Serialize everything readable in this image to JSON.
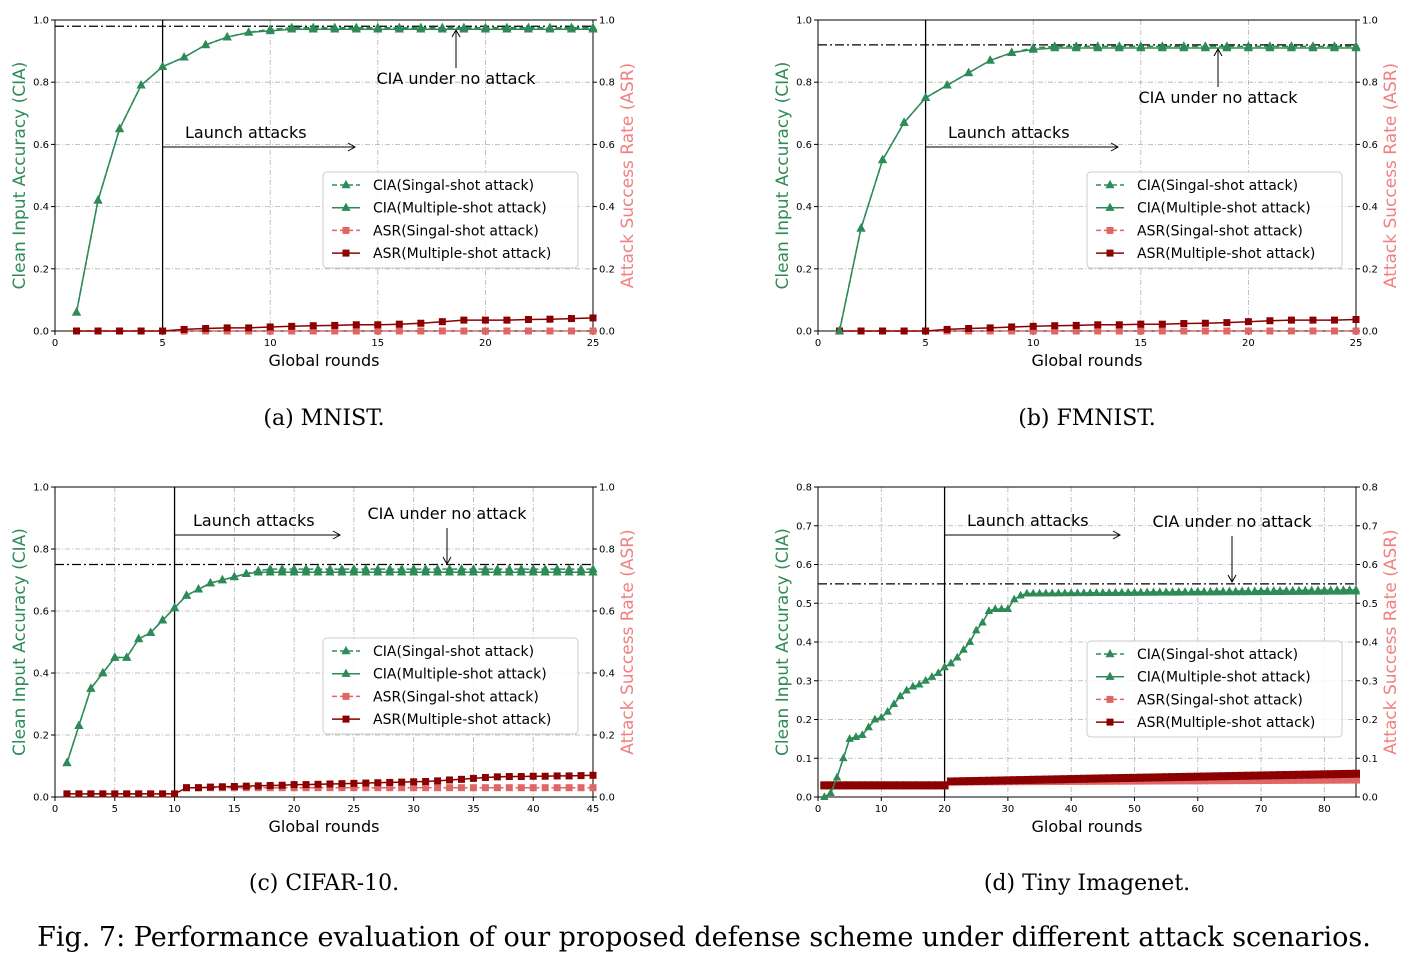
{
  "figure_caption": "Fig. 7: Performance evaluation of our proposed defense scheme under different attack scenarios.",
  "colors": {
    "cia": "#2e8b57",
    "asr_single": "#e06666",
    "asr_multi": "#8b0000",
    "left_axis_label": "#2e8b57",
    "right_axis_label": "#f08080"
  },
  "legend": [
    "CIA(Singal-shot attack)",
    "CIA(Multiple-shot attack)",
    "ASR(Singal-shot attack)",
    "ASR(Multiple-shot attack)"
  ],
  "chart_data": [
    {
      "type": "line",
      "caption": "(a) MNIST.",
      "xlabel": "Global rounds",
      "ylabel": "Clean Input Accuracy (CIA)",
      "ylabel_right": "Attack Success Rate (ASR)",
      "xlim": [
        0,
        25
      ],
      "ylim": [
        0,
        1.0
      ],
      "xticks": [
        0,
        5,
        10,
        15,
        20,
        25
      ],
      "yticks": [
        0.0,
        0.2,
        0.4,
        0.6,
        0.8,
        1.0
      ],
      "grid": true,
      "legend_position": "center-right",
      "launch_round": 5,
      "launch_label": "Launch attacks",
      "no_attack_label": "CIA under no attack",
      "no_attack_cia": 0.98,
      "x": [
        1,
        2,
        3,
        4,
        5,
        6,
        7,
        8,
        9,
        10,
        11,
        12,
        13,
        14,
        15,
        16,
        17,
        18,
        19,
        20,
        21,
        22,
        23,
        24,
        25
      ],
      "series": [
        {
          "name": "CIA(Singal-shot attack)",
          "values": [
            0.06,
            0.42,
            0.65,
            0.79,
            0.85,
            0.88,
            0.92,
            0.945,
            0.96,
            0.97,
            0.975,
            0.975,
            0.975,
            0.975,
            0.975,
            0.975,
            0.975,
            0.975,
            0.975,
            0.975,
            0.975,
            0.975,
            0.975,
            0.975,
            0.975
          ]
        },
        {
          "name": "CIA(Multiple-shot attack)",
          "values": [
            0.06,
            0.42,
            0.65,
            0.79,
            0.85,
            0.88,
            0.92,
            0.945,
            0.96,
            0.965,
            0.97,
            0.97,
            0.97,
            0.97,
            0.97,
            0.97,
            0.97,
            0.97,
            0.97,
            0.97,
            0.97,
            0.97,
            0.97,
            0.97,
            0.97
          ]
        },
        {
          "name": "ASR(Singal-shot attack)",
          "values": [
            0.0,
            0.0,
            0.0,
            0.0,
            0.0,
            0.0,
            0.0,
            0.0,
            0.0,
            0.0,
            0.0,
            0.0,
            0.0,
            0.0,
            0.0,
            0.0,
            0.0,
            0.0,
            0.0,
            0.0,
            0.0,
            0.0,
            0.0,
            0.0,
            0.0
          ]
        },
        {
          "name": "ASR(Multiple-shot attack)",
          "values": [
            0.0,
            0.0,
            0.0,
            0.0,
            0.0,
            0.005,
            0.008,
            0.01,
            0.01,
            0.013,
            0.015,
            0.017,
            0.018,
            0.02,
            0.02,
            0.022,
            0.025,
            0.03,
            0.035,
            0.035,
            0.035,
            0.037,
            0.038,
            0.04,
            0.042
          ]
        }
      ]
    },
    {
      "type": "line",
      "caption": "(b) FMNIST.",
      "xlabel": "Global rounds",
      "ylabel": "Clean Input Accuracy (CIA)",
      "ylabel_right": "Attack Success Rate (ASR)",
      "xlim": [
        0,
        25
      ],
      "ylim": [
        0,
        1.0
      ],
      "xticks": [
        0,
        5,
        10,
        15,
        20,
        25
      ],
      "yticks": [
        0.0,
        0.2,
        0.4,
        0.6,
        0.8,
        1.0
      ],
      "grid": true,
      "legend_position": "center-right",
      "launch_round": 5,
      "launch_label": "Launch attacks",
      "no_attack_label": "CIA under no attack",
      "no_attack_cia": 0.92,
      "x": [
        1,
        2,
        3,
        4,
        5,
        6,
        7,
        8,
        9,
        10,
        11,
        12,
        13,
        14,
        15,
        16,
        17,
        18,
        19,
        20,
        21,
        22,
        23,
        24,
        25
      ],
      "series": [
        {
          "name": "CIA(Singal-shot attack)",
          "values": [
            0.0,
            0.33,
            0.55,
            0.67,
            0.75,
            0.79,
            0.83,
            0.87,
            0.895,
            0.91,
            0.915,
            0.915,
            0.915,
            0.915,
            0.915,
            0.915,
            0.915,
            0.915,
            0.915,
            0.915,
            0.915,
            0.915,
            0.915,
            0.915,
            0.915
          ]
        },
        {
          "name": "CIA(Multiple-shot attack)",
          "values": [
            0.0,
            0.33,
            0.55,
            0.67,
            0.75,
            0.79,
            0.83,
            0.87,
            0.895,
            0.905,
            0.91,
            0.91,
            0.91,
            0.91,
            0.91,
            0.91,
            0.91,
            0.91,
            0.91,
            0.91,
            0.91,
            0.91,
            0.91,
            0.91,
            0.91
          ]
        },
        {
          "name": "ASR(Singal-shot attack)",
          "values": [
            0.0,
            0.0,
            0.0,
            0.0,
            0.0,
            0.0,
            0.0,
            0.0,
            0.0,
            0.0,
            0.0,
            0.0,
            0.0,
            0.0,
            0.0,
            0.0,
            0.0,
            0.0,
            0.0,
            0.0,
            0.0,
            0.0,
            0.0,
            0.0,
            0.0
          ]
        },
        {
          "name": "ASR(Multiple-shot attack)",
          "values": [
            0.0,
            0.0,
            0.0,
            0.0,
            0.0,
            0.005,
            0.008,
            0.01,
            0.013,
            0.015,
            0.017,
            0.018,
            0.02,
            0.02,
            0.022,
            0.022,
            0.024,
            0.025,
            0.027,
            0.03,
            0.033,
            0.035,
            0.035,
            0.035,
            0.037
          ]
        }
      ]
    },
    {
      "type": "line",
      "caption": "(c) CIFAR-10.",
      "xlabel": "Global rounds",
      "ylabel": "Clean Input Accuracy (CIA)",
      "ylabel_right": "Attack Success Rate (ASR)",
      "xlim": [
        0,
        45
      ],
      "ylim": [
        0,
        1.0
      ],
      "xticks": [
        0,
        5,
        10,
        15,
        20,
        25,
        30,
        35,
        40,
        45
      ],
      "yticks": [
        0.0,
        0.2,
        0.4,
        0.6,
        0.8,
        1.0
      ],
      "grid": true,
      "legend_position": "center-right",
      "launch_round": 10,
      "launch_label": "Launch attacks",
      "no_attack_label": "CIA under no attack",
      "no_attack_cia": 0.75,
      "x": [
        1,
        2,
        3,
        4,
        5,
        6,
        7,
        8,
        9,
        10,
        11,
        12,
        13,
        14,
        15,
        16,
        17,
        18,
        19,
        20,
        21,
        22,
        23,
        24,
        25,
        26,
        27,
        28,
        29,
        30,
        31,
        32,
        33,
        34,
        35,
        36,
        37,
        38,
        39,
        40,
        41,
        42,
        43,
        44,
        45
      ],
      "series": [
        {
          "name": "CIA(Singal-shot attack)",
          "values": [
            0.11,
            0.23,
            0.35,
            0.4,
            0.45,
            0.45,
            0.51,
            0.53,
            0.57,
            0.61,
            0.65,
            0.67,
            0.69,
            0.7,
            0.71,
            0.72,
            0.73,
            0.735,
            0.735,
            0.735,
            0.735,
            0.735,
            0.735,
            0.735,
            0.735,
            0.735,
            0.735,
            0.735,
            0.735,
            0.735,
            0.735,
            0.735,
            0.735,
            0.735,
            0.735,
            0.735,
            0.735,
            0.735,
            0.735,
            0.735,
            0.735,
            0.735,
            0.735,
            0.735,
            0.735
          ]
        },
        {
          "name": "CIA(Multiple-shot attack)",
          "values": [
            0.11,
            0.23,
            0.35,
            0.4,
            0.45,
            0.45,
            0.51,
            0.53,
            0.57,
            0.61,
            0.65,
            0.67,
            0.69,
            0.7,
            0.71,
            0.72,
            0.725,
            0.725,
            0.725,
            0.725,
            0.725,
            0.725,
            0.725,
            0.725,
            0.725,
            0.725,
            0.725,
            0.725,
            0.725,
            0.725,
            0.725,
            0.725,
            0.725,
            0.725,
            0.725,
            0.725,
            0.725,
            0.725,
            0.725,
            0.725,
            0.725,
            0.725,
            0.725,
            0.725,
            0.725
          ]
        },
        {
          "name": "ASR(Singal-shot attack)",
          "values": [
            0.01,
            0.01,
            0.01,
            0.01,
            0.01,
            0.01,
            0.01,
            0.01,
            0.01,
            0.01,
            0.03,
            0.03,
            0.03,
            0.03,
            0.03,
            0.03,
            0.03,
            0.03,
            0.03,
            0.03,
            0.03,
            0.03,
            0.03,
            0.03,
            0.03,
            0.03,
            0.03,
            0.03,
            0.03,
            0.03,
            0.03,
            0.03,
            0.03,
            0.03,
            0.03,
            0.03,
            0.03,
            0.03,
            0.03,
            0.03,
            0.03,
            0.03,
            0.03,
            0.03,
            0.03
          ]
        },
        {
          "name": "ASR(Multiple-shot attack)",
          "values": [
            0.01,
            0.01,
            0.01,
            0.01,
            0.01,
            0.01,
            0.01,
            0.01,
            0.01,
            0.01,
            0.03,
            0.03,
            0.032,
            0.033,
            0.034,
            0.035,
            0.036,
            0.037,
            0.038,
            0.04,
            0.04,
            0.041,
            0.042,
            0.043,
            0.044,
            0.045,
            0.046,
            0.047,
            0.048,
            0.049,
            0.05,
            0.052,
            0.055,
            0.057,
            0.06,
            0.063,
            0.065,
            0.066,
            0.066,
            0.067,
            0.067,
            0.068,
            0.068,
            0.069,
            0.07
          ]
        }
      ]
    },
    {
      "type": "line",
      "caption": "(d) Tiny Imagenet.",
      "xlabel": "Global rounds",
      "ylabel": "Clean Input Accuracy (CIA)",
      "ylabel_right": "Attack Success Rate (ASR)",
      "xlim": [
        0,
        85
      ],
      "ylim": [
        0,
        0.8
      ],
      "xticks": [
        0,
        10,
        20,
        30,
        40,
        50,
        60,
        70,
        80
      ],
      "yticks": [
        0.0,
        0.1,
        0.2,
        0.3,
        0.4,
        0.5,
        0.6,
        0.7,
        0.8
      ],
      "grid": true,
      "legend_position": "center-right",
      "launch_round": 20,
      "launch_label": "Launch attacks",
      "no_attack_label": "CIA under no attack",
      "no_attack_cia": 0.55,
      "x_start": 1,
      "x_end": 85,
      "cia_single_anchors": [
        [
          1,
          0.0
        ],
        [
          2,
          0.01
        ],
        [
          3,
          0.05
        ],
        [
          4,
          0.1
        ],
        [
          5,
          0.15
        ],
        [
          6,
          0.155
        ],
        [
          7,
          0.16
        ],
        [
          8,
          0.18
        ],
        [
          9,
          0.2
        ],
        [
          10,
          0.205
        ],
        [
          11,
          0.22
        ],
        [
          12,
          0.24
        ],
        [
          13,
          0.26
        ],
        [
          14,
          0.275
        ],
        [
          15,
          0.285
        ],
        [
          16,
          0.29
        ],
        [
          17,
          0.3
        ],
        [
          18,
          0.31
        ],
        [
          19,
          0.32
        ],
        [
          20,
          0.335
        ],
        [
          21,
          0.345
        ],
        [
          22,
          0.36
        ],
        [
          23,
          0.38
        ],
        [
          24,
          0.4
        ],
        [
          25,
          0.43
        ],
        [
          26,
          0.45
        ],
        [
          27,
          0.48
        ],
        [
          28,
          0.485
        ],
        [
          29,
          0.485
        ],
        [
          30,
          0.485
        ],
        [
          31,
          0.51
        ],
        [
          32,
          0.52
        ],
        [
          33,
          0.525
        ],
        [
          85,
          0.535
        ]
      ],
      "cia_multi_anchors": [
        [
          1,
          0.0
        ],
        [
          2,
          0.01
        ],
        [
          3,
          0.05
        ],
        [
          4,
          0.1
        ],
        [
          5,
          0.15
        ],
        [
          6,
          0.155
        ],
        [
          7,
          0.16
        ],
        [
          8,
          0.18
        ],
        [
          9,
          0.2
        ],
        [
          10,
          0.205
        ],
        [
          11,
          0.22
        ],
        [
          12,
          0.24
        ],
        [
          13,
          0.26
        ],
        [
          14,
          0.275
        ],
        [
          15,
          0.285
        ],
        [
          16,
          0.29
        ],
        [
          17,
          0.3
        ],
        [
          18,
          0.31
        ],
        [
          19,
          0.32
        ],
        [
          20,
          0.335
        ],
        [
          21,
          0.345
        ],
        [
          22,
          0.36
        ],
        [
          23,
          0.38
        ],
        [
          24,
          0.4
        ],
        [
          25,
          0.43
        ],
        [
          26,
          0.45
        ],
        [
          27,
          0.48
        ],
        [
          28,
          0.485
        ],
        [
          29,
          0.485
        ],
        [
          30,
          0.485
        ],
        [
          31,
          0.51
        ],
        [
          32,
          0.52
        ],
        [
          33,
          0.525
        ],
        [
          85,
          0.53
        ]
      ],
      "asr_single_anchors": [
        [
          1,
          0.03
        ],
        [
          20,
          0.03
        ],
        [
          21,
          0.04
        ],
        [
          85,
          0.045
        ]
      ],
      "asr_multi_anchors": [
        [
          1,
          0.03
        ],
        [
          20,
          0.03
        ],
        [
          21,
          0.04
        ],
        [
          45,
          0.048
        ],
        [
          85,
          0.06
        ]
      ],
      "series": [
        {
          "name": "CIA(Singal-shot attack)",
          "from": "cia_single_anchors"
        },
        {
          "name": "CIA(Multiple-shot attack)",
          "from": "cia_multi_anchors"
        },
        {
          "name": "ASR(Singal-shot attack)",
          "from": "asr_single_anchors"
        },
        {
          "name": "ASR(Multiple-shot attack)",
          "from": "asr_multi_anchors"
        }
      ]
    }
  ]
}
